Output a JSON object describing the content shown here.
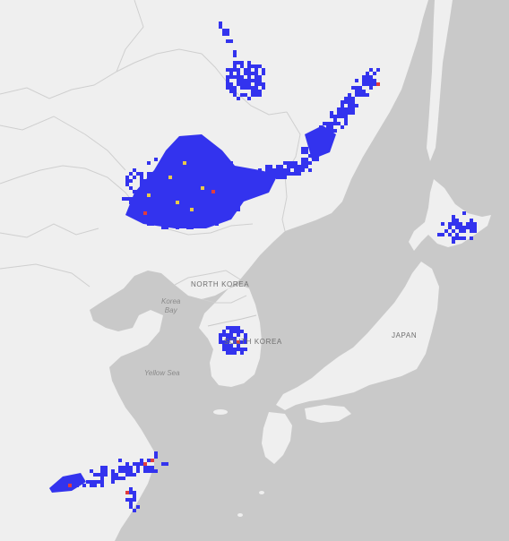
{
  "map": {
    "labels": {
      "north_korea": "NORTH KOREA",
      "south_korea": "SOUTH KOREA",
      "japan": "JAPAN",
      "korea_bay_line1": "Korea",
      "korea_bay_line2": "Bay",
      "yellow_sea": "Yellow Sea"
    },
    "colors": {
      "land": "#efefef",
      "water": "#c9c9c9",
      "border": "#cfcfcf",
      "heat_primary": "#3333ee",
      "heat_hot": "#e23c3c",
      "heat_warm": "#e8c94a"
    }
  }
}
